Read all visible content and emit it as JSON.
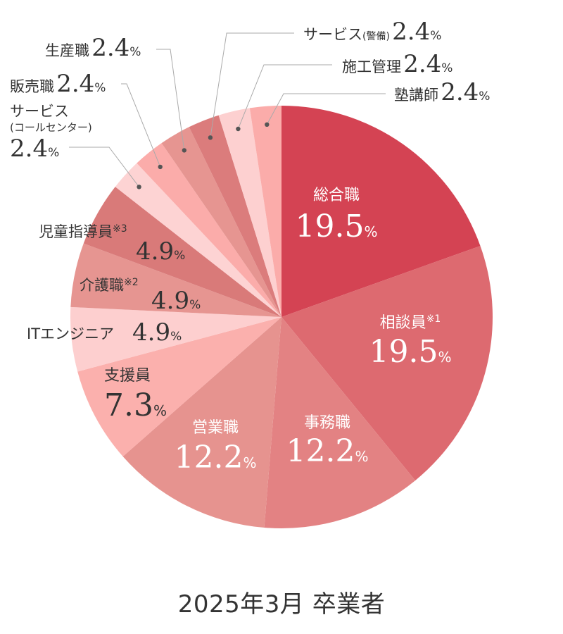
{
  "caption": "2025年3月 卒業者",
  "unit": "%",
  "chart_data": {
    "type": "pie",
    "title": "2025年3月 卒業者",
    "slices": [
      {
        "label": "総合職",
        "note": "",
        "value": 19.5,
        "value_text": "19.5",
        "color": "#d44353"
      },
      {
        "label": "相談員",
        "note": "※1",
        "value": 19.5,
        "value_text": "19.5",
        "color": "#dd6a70"
      },
      {
        "label": "事務職",
        "note": "",
        "value": 12.2,
        "value_text": "12.2",
        "color": "#e38283"
      },
      {
        "label": "営業職",
        "note": "",
        "value": 12.2,
        "value_text": "12.2",
        "color": "#e6938f"
      },
      {
        "label": "支援員",
        "note": "",
        "value": 7.3,
        "value_text": "7.3",
        "color": "#fbb0ad"
      },
      {
        "label": "ITエンジニア",
        "note": "",
        "value": 4.9,
        "value_text": "4.9",
        "color": "#fdcfcf"
      },
      {
        "label": "介護職",
        "note": "※2",
        "value": 4.9,
        "value_text": "4.9",
        "color": "#e69591"
      },
      {
        "label": "児童指導員",
        "note": "※3",
        "value": 4.9,
        "value_text": "4.9",
        "color": "#d97a79"
      },
      {
        "label": "サービス",
        "label2": "(コールセンター)",
        "note": "",
        "value": 2.4,
        "value_text": "2.4",
        "color": "#fdd3d3"
      },
      {
        "label": "販売職",
        "note": "",
        "value": 2.4,
        "value_text": "2.4",
        "color": "#fbacaa"
      },
      {
        "label": "生産職",
        "note": "",
        "value": 2.4,
        "value_text": "2.4",
        "color": "#e69591"
      },
      {
        "label": "サービス",
        "label_small": "(警備)",
        "note": "",
        "value": 2.4,
        "value_text": "2.4",
        "color": "#db7c7c"
      },
      {
        "label": "施工管理",
        "note": "",
        "value": 2.4,
        "value_text": "2.4",
        "color": "#fdd0d0"
      },
      {
        "label": "塾講師",
        "note": "",
        "value": 2.4,
        "value_text": "2.4",
        "color": "#fbacaa"
      }
    ]
  }
}
